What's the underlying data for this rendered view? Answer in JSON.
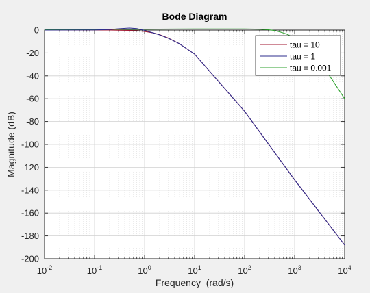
{
  "chart_data": {
    "type": "line",
    "title": "Bode Diagram",
    "xlabel": "Frequency  (rad/s)",
    "ylabel": "Magnitude (dB)",
    "xscale": "log",
    "xlim": [
      0.01,
      10000
    ],
    "ylim": [
      -200,
      0
    ],
    "xticks": [
      {
        "value": 0.01,
        "base": "10",
        "exp": "-2"
      },
      {
        "value": 0.1,
        "base": "10",
        "exp": "-1"
      },
      {
        "value": 1,
        "base": "10",
        "exp": "0"
      },
      {
        "value": 10,
        "base": "10",
        "exp": "1"
      },
      {
        "value": 100,
        "base": "10",
        "exp": "2"
      },
      {
        "value": 1000,
        "base": "10",
        "exp": "3"
      },
      {
        "value": 10000,
        "base": "10",
        "exp": "4"
      }
    ],
    "yticks": [
      0,
      -20,
      -40,
      -60,
      -80,
      -100,
      -120,
      -140,
      -160,
      -180,
      -200
    ],
    "grid": true,
    "legend_position": "top-right",
    "series": [
      {
        "name": "tau = 10",
        "color": "#a2142f",
        "x": [
          0.01,
          0.1,
          0.2,
          0.3,
          0.5,
          0.7,
          1,
          1.5,
          2,
          3,
          5,
          10,
          100,
          1000,
          10000
        ],
        "y": [
          0,
          0,
          0,
          -0.1,
          -0.3,
          -0.6,
          -1.2,
          -2.5,
          -4,
          -7,
          -12,
          -21,
          -71,
          -131,
          -188
        ]
      },
      {
        "name": "tau = 1",
        "color": "#2e2e8e",
        "x": [
          0.01,
          0.1,
          0.2,
          0.3,
          0.5,
          0.7,
          1,
          1.5,
          2,
          3,
          5,
          10,
          100,
          1000,
          10000
        ],
        "y": [
          0,
          0.1,
          0.5,
          1.2,
          1.8,
          1.3,
          -0.3,
          -2.5,
          -4.2,
          -7.2,
          -12,
          -21,
          -71,
          -131,
          -188
        ]
      },
      {
        "name": "tau = 0.001",
        "color": "#2ca02c",
        "x": [
          0.01,
          0.1,
          1,
          10,
          100,
          200,
          300,
          400,
          500,
          700,
          1000,
          2000,
          5000,
          10000
        ],
        "y": [
          0.5,
          0.6,
          0.8,
          1,
          1,
          0.8,
          0.3,
          -0.4,
          -1.5,
          -3.5,
          -7,
          -20,
          -40,
          -60
        ]
      }
    ]
  }
}
